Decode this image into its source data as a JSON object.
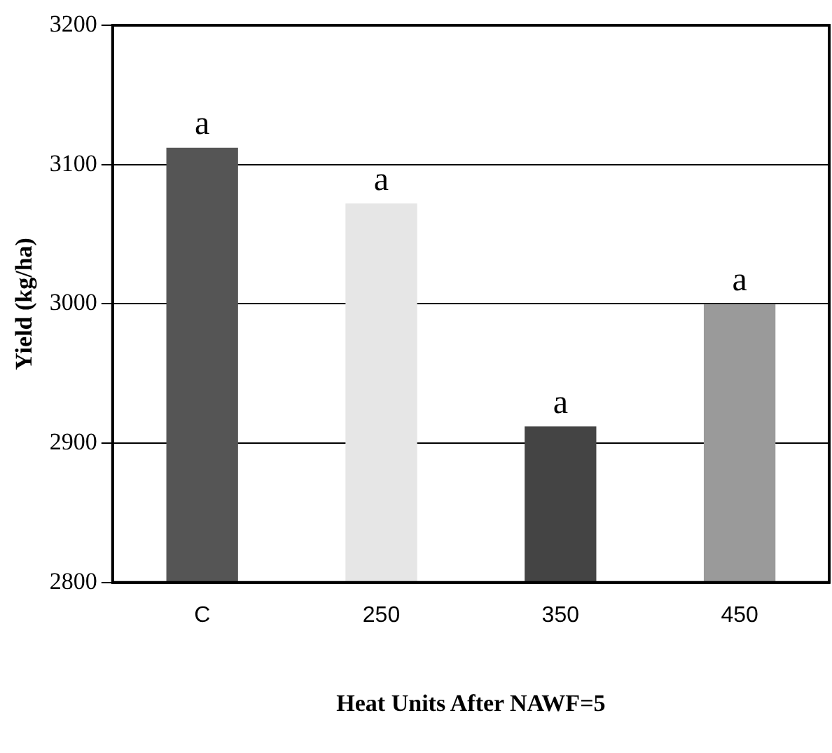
{
  "chart_data": {
    "type": "bar",
    "xlabel": "Heat Units After NAWF=5",
    "ylabel": "Yield (kg/ha)",
    "categories": [
      "C",
      "250",
      "350",
      "450"
    ],
    "values": [
      3112,
      3072,
      2912,
      3000
    ],
    "colors": [
      "#555555",
      "#e6e6e6",
      "#444444",
      "#9a9a9a"
    ],
    "ylim": [
      2800,
      3200
    ],
    "yticks": [
      2800,
      2900,
      3000,
      3100,
      3200
    ],
    "grid": "y",
    "legend": false,
    "annotations": [
      "a",
      "a",
      "a",
      "a"
    ]
  }
}
